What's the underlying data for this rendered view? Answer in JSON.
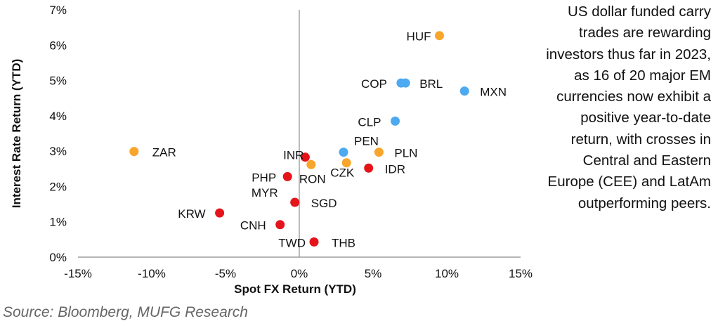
{
  "side_text": "US dollar funded carry trades are rewarding investors thus far in 2023, as 16 of 20 major EM currencies now exhibit a positive year-to-date return, with crosses in Central and Eastern Europe (CEE) and LatAm outperforming peers.",
  "source": "Source: Bloomberg, MUFG Research",
  "chart_data": {
    "type": "scatter",
    "title": "",
    "xlabel": "Spot FX Return (YTD)",
    "ylabel": "Interest Rate Return (YTD)",
    "xlim": [
      -15,
      15
    ],
    "ylim": [
      0,
      7
    ],
    "x_ticks": [
      "-15%",
      "-10%",
      "-5%",
      "0%",
      "5%",
      "10%",
      "15%"
    ],
    "y_ticks": [
      "0%",
      "1%",
      "2%",
      "3%",
      "4%",
      "5%",
      "6%",
      "7%"
    ],
    "grid": false,
    "colors": {
      "orange": "#F7A52B",
      "blue": "#4DA9F0",
      "red": "#E5141B"
    },
    "points": [
      {
        "label": "HUF",
        "x": 9.5,
        "y": 6.27,
        "color": "orange"
      },
      {
        "label": "COP",
        "x": 6.9,
        "y": 4.93,
        "color": "blue"
      },
      {
        "label": "BRL",
        "x": 7.2,
        "y": 4.93,
        "color": "blue"
      },
      {
        "label": "MXN",
        "x": 11.2,
        "y": 4.7,
        "color": "blue"
      },
      {
        "label": "CLP",
        "x": 6.5,
        "y": 3.85,
        "color": "blue"
      },
      {
        "label": "PEN",
        "x": 3.0,
        "y": 2.97,
        "color": "blue"
      },
      {
        "label": "PLN",
        "x": 5.4,
        "y": 2.97,
        "color": "orange"
      },
      {
        "label": "ZAR",
        "x": -11.2,
        "y": 2.99,
        "color": "orange"
      },
      {
        "label": "INR",
        "x": 0.4,
        "y": 2.83,
        "color": "red"
      },
      {
        "label": "RON",
        "x": 0.8,
        "y": 2.62,
        "color": "orange"
      },
      {
        "label": "CZK",
        "x": 3.2,
        "y": 2.67,
        "color": "orange"
      },
      {
        "label": "IDR",
        "x": 4.7,
        "y": 2.52,
        "color": "red"
      },
      {
        "label": "PHP",
        "x": -0.8,
        "y": 2.28,
        "color": "red"
      },
      {
        "label": "MYR",
        "x": -0.3,
        "y": 1.55,
        "color": "red"
      },
      {
        "label": "SGD",
        "x": -0.3,
        "y": 1.55,
        "color": "red"
      },
      {
        "label": "KRW",
        "x": -5.4,
        "y": 1.25,
        "color": "red"
      },
      {
        "label": "CNH",
        "x": -1.3,
        "y": 0.92,
        "color": "red"
      },
      {
        "label": "TWD",
        "x": 1.0,
        "y": 0.43,
        "color": "red"
      },
      {
        "label": "THB",
        "x": 1.0,
        "y": 0.43,
        "color": "red"
      }
    ]
  }
}
